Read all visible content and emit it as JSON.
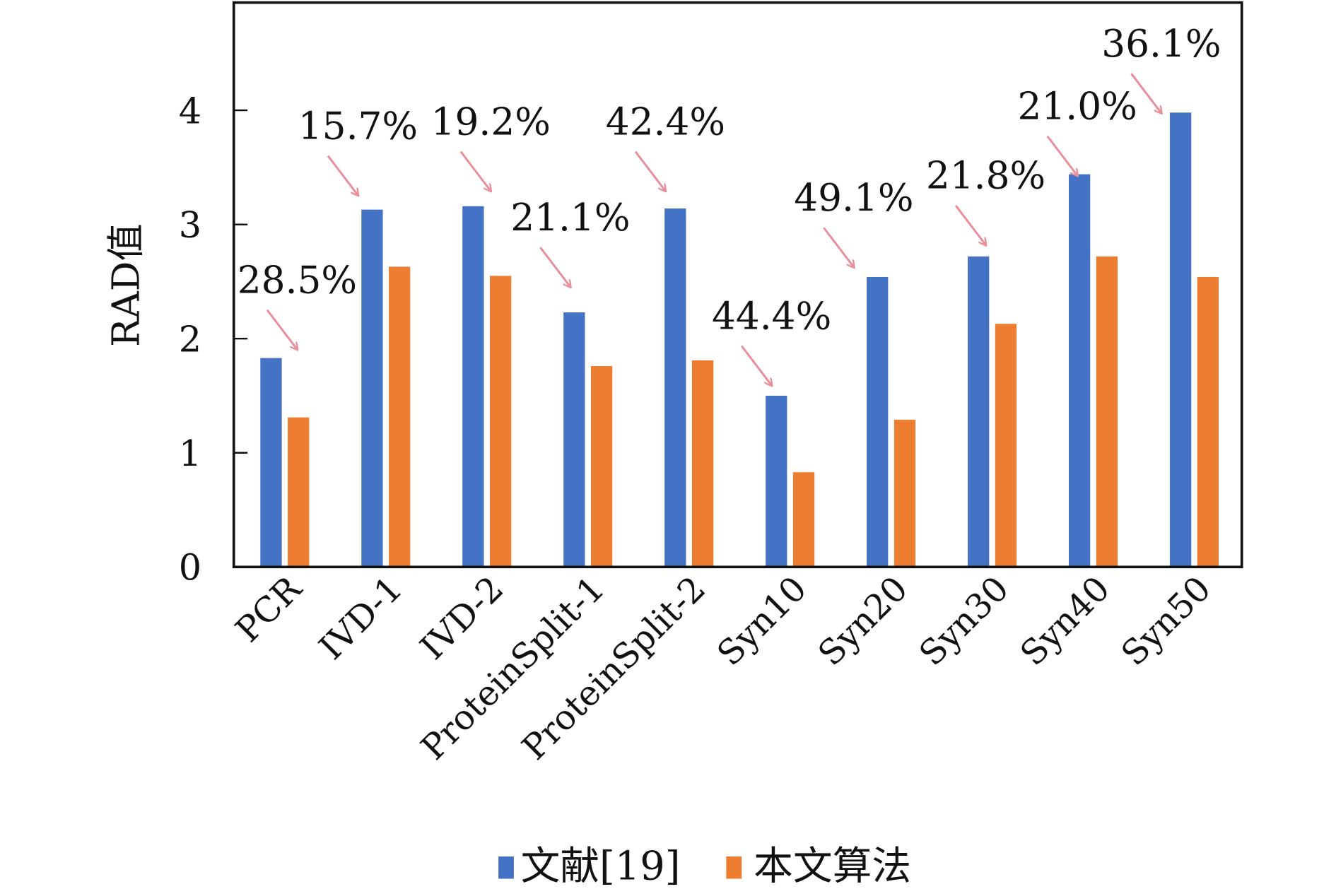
{
  "chart_data": {
    "type": "bar",
    "ylabel": "RAD值",
    "ylim": [
      0,
      4.95
    ],
    "yticks": [
      "0",
      "1",
      "2",
      "3",
      "4"
    ],
    "categories": [
      "PCR",
      "IVD-1",
      "IVD-2",
      "ProteinSplit-1",
      "ProteinSplit-2",
      "Syn10",
      "Syn20",
      "Syn30",
      "Syn40",
      "Syn50"
    ],
    "series": [
      {
        "name": "文献[19]",
        "color": "#4472C4",
        "values": [
          1.83,
          3.13,
          3.16,
          2.23,
          3.14,
          1.5,
          2.54,
          2.72,
          3.44,
          3.98
        ]
      },
      {
        "name": "本文算法",
        "color": "#ED7D31",
        "values": [
          1.31,
          2.63,
          2.55,
          1.76,
          1.81,
          0.83,
          1.29,
          2.13,
          2.72,
          2.54
        ]
      }
    ],
    "annotations": [
      "28.5%",
      "15.7%",
      "19.2%",
      "21.1%",
      "42.4%",
      "44.4%",
      "49.1%",
      "21.8%",
      "21.0%",
      "36.1%"
    ],
    "annotation_arrow_color": "#E8909A",
    "grid": false,
    "legend": "bottom"
  }
}
